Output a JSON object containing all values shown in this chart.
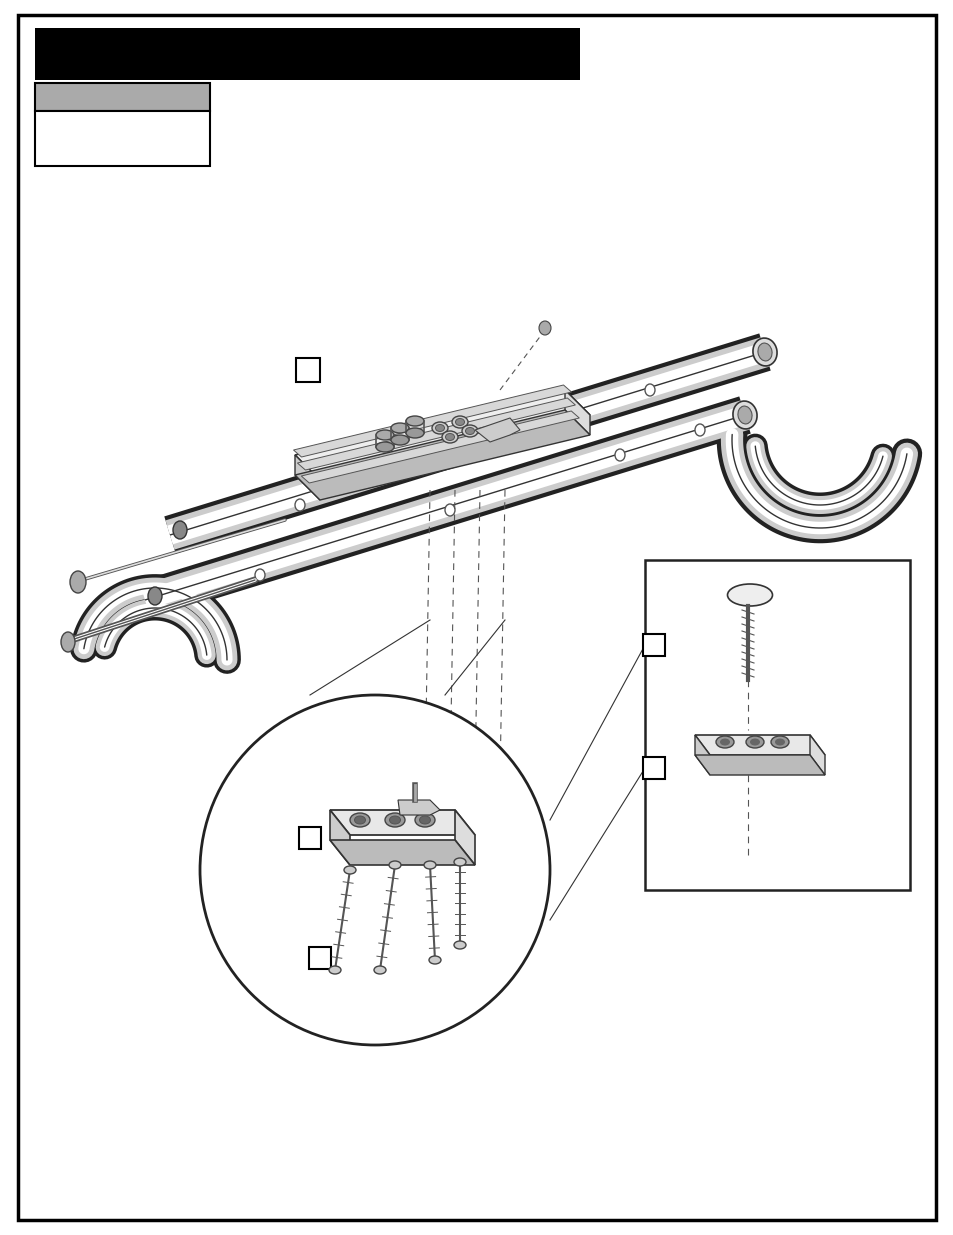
{
  "page_bg": "#ffffff",
  "border_color": "#000000",
  "border_linewidth": 2.5,
  "header_bar_color": "#000000",
  "subheader_bar_color": "#aaaaaa"
}
